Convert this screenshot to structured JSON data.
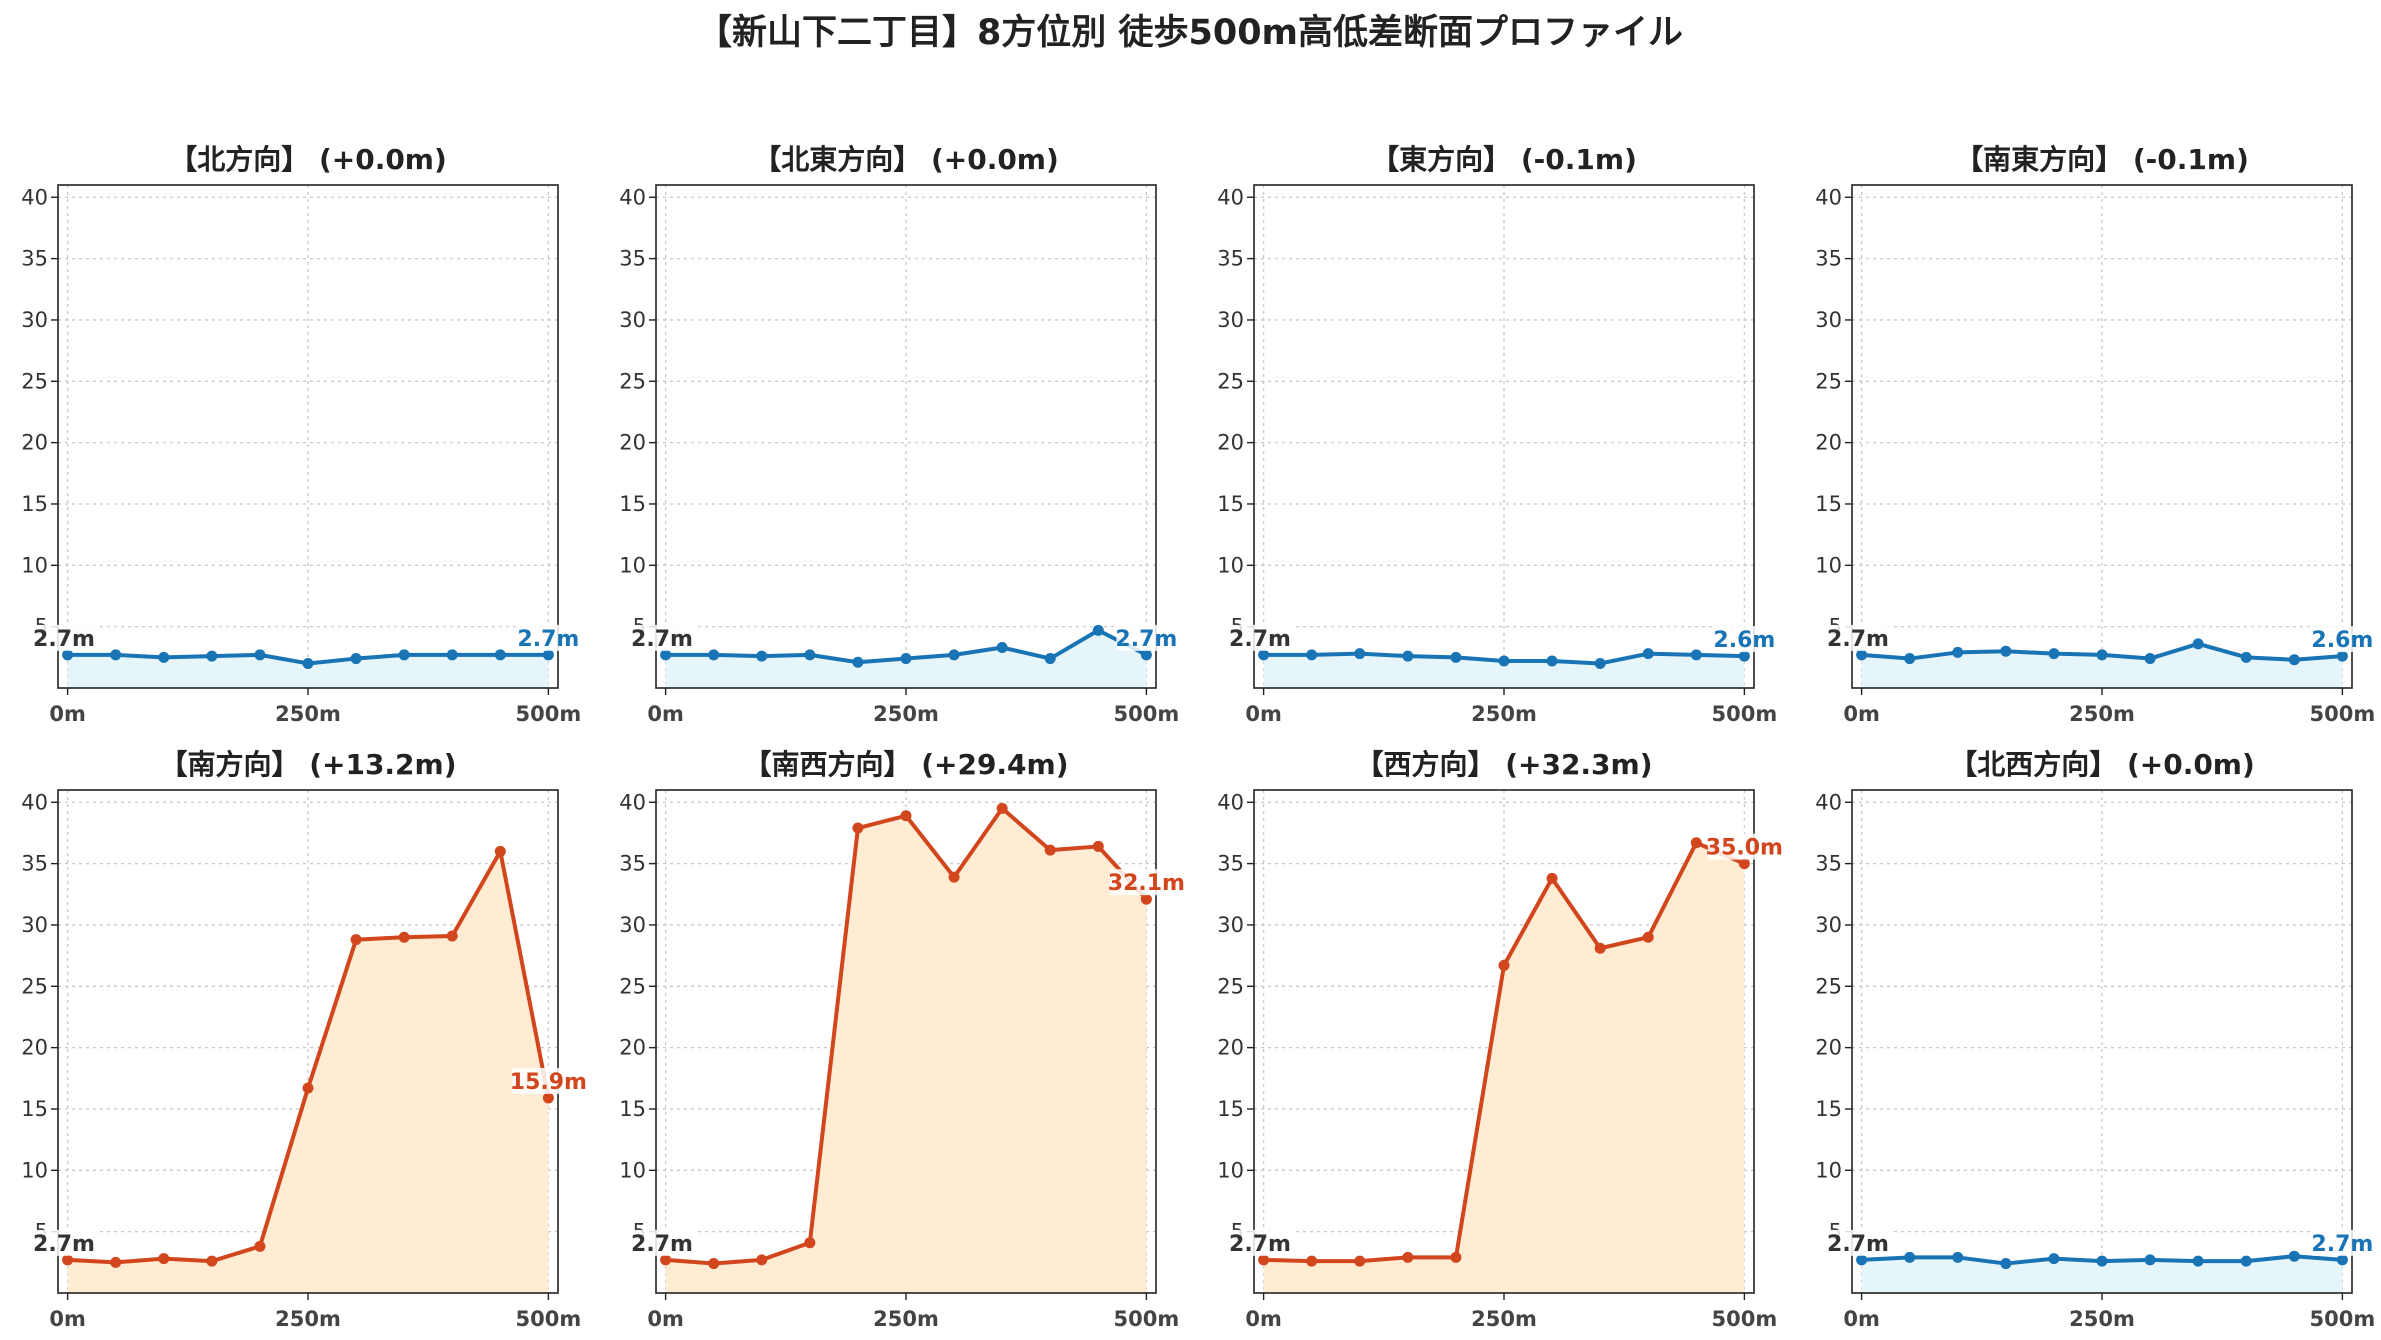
{
  "title": "【新山下二丁目】8方位別 徒歩500m高低差断面プロファイル",
  "colors": {
    "flat_line": "#1874b5",
    "flat_fill": "#e6f5fa",
    "hill_line": "#d2461e",
    "hill_fill": "#ffecd2",
    "start_label": "#333333"
  },
  "chart_data": [
    {
      "type": "line",
      "title": "【北方向】 (+0.0m)",
      "x": [
        0,
        50,
        100,
        150,
        200,
        250,
        300,
        350,
        400,
        450,
        500
      ],
      "values": [
        2.7,
        2.7,
        2.5,
        2.6,
        2.7,
        2.0,
        2.4,
        2.7,
        2.7,
        2.7,
        2.7
      ],
      "start_label": "2.7m",
      "end_label": "2.7m",
      "style": "flat",
      "xticks": [
        {
          "v": 0,
          "label": "0m"
        },
        {
          "v": 250,
          "label": "250m"
        },
        {
          "v": 500,
          "label": "500m"
        }
      ],
      "yticks": [
        5,
        10,
        15,
        20,
        25,
        30,
        35,
        40
      ],
      "ylim": [
        0,
        41
      ],
      "xlim": [
        -10,
        510
      ],
      "grid": true
    },
    {
      "type": "line",
      "title": "【北東方向】 (+0.0m)",
      "x": [
        0,
        50,
        100,
        150,
        200,
        250,
        300,
        350,
        400,
        450,
        500
      ],
      "values": [
        2.7,
        2.7,
        2.6,
        2.7,
        2.1,
        2.4,
        2.7,
        3.3,
        2.4,
        4.7,
        2.7
      ],
      "start_label": "2.7m",
      "end_label": "2.7m",
      "style": "flat",
      "xticks": [
        {
          "v": 0,
          "label": "0m"
        },
        {
          "v": 250,
          "label": "250m"
        },
        {
          "v": 500,
          "label": "500m"
        }
      ],
      "yticks": [
        5,
        10,
        15,
        20,
        25,
        30,
        35,
        40
      ],
      "ylim": [
        0,
        41
      ],
      "xlim": [
        -10,
        510
      ],
      "grid": true
    },
    {
      "type": "line",
      "title": "【東方向】 (-0.1m)",
      "x": [
        0,
        50,
        100,
        150,
        200,
        250,
        300,
        350,
        400,
        450,
        500
      ],
      "values": [
        2.7,
        2.7,
        2.8,
        2.6,
        2.5,
        2.2,
        2.2,
        2.0,
        2.8,
        2.7,
        2.6
      ],
      "start_label": "2.7m",
      "end_label": "2.6m",
      "style": "flat",
      "xticks": [
        {
          "v": 0,
          "label": "0m"
        },
        {
          "v": 250,
          "label": "250m"
        },
        {
          "v": 500,
          "label": "500m"
        }
      ],
      "yticks": [
        5,
        10,
        15,
        20,
        25,
        30,
        35,
        40
      ],
      "ylim": [
        0,
        41
      ],
      "xlim": [
        -10,
        510
      ],
      "grid": true
    },
    {
      "type": "line",
      "title": "【南東方向】 (-0.1m)",
      "x": [
        0,
        50,
        100,
        150,
        200,
        250,
        300,
        350,
        400,
        450,
        500
      ],
      "values": [
        2.7,
        2.4,
        2.9,
        3.0,
        2.8,
        2.7,
        2.4,
        3.6,
        2.5,
        2.3,
        2.6
      ],
      "start_label": "2.7m",
      "end_label": "2.6m",
      "style": "flat",
      "xticks": [
        {
          "v": 0,
          "label": "0m"
        },
        {
          "v": 250,
          "label": "250m"
        },
        {
          "v": 500,
          "label": "500m"
        }
      ],
      "yticks": [
        5,
        10,
        15,
        20,
        25,
        30,
        35,
        40
      ],
      "ylim": [
        0,
        41
      ],
      "xlim": [
        -10,
        510
      ],
      "grid": true
    },
    {
      "type": "line",
      "title": "【南方向】 (+13.2m)",
      "x": [
        0,
        50,
        100,
        150,
        200,
        250,
        300,
        350,
        400,
        450,
        500
      ],
      "values": [
        2.7,
        2.5,
        2.8,
        2.6,
        3.8,
        16.7,
        28.8,
        29.0,
        29.1,
        36.0,
        15.9
      ],
      "start_label": "2.7m",
      "end_label": "15.9m",
      "style": "hill",
      "xticks": [
        {
          "v": 0,
          "label": "0m"
        },
        {
          "v": 250,
          "label": "250m"
        },
        {
          "v": 500,
          "label": "500m"
        }
      ],
      "yticks": [
        5,
        10,
        15,
        20,
        25,
        30,
        35,
        40
      ],
      "ylim": [
        0,
        41
      ],
      "xlim": [
        -10,
        510
      ],
      "grid": true
    },
    {
      "type": "line",
      "title": "【南西方向】 (+29.4m)",
      "x": [
        0,
        50,
        100,
        150,
        200,
        250,
        300,
        350,
        400,
        450,
        500
      ],
      "values": [
        2.7,
        2.4,
        2.7,
        4.1,
        37.9,
        38.9,
        33.9,
        39.5,
        36.1,
        36.4,
        32.1
      ],
      "start_label": "2.7m",
      "end_label": "32.1m",
      "style": "hill",
      "xticks": [
        {
          "v": 0,
          "label": "0m"
        },
        {
          "v": 250,
          "label": "250m"
        },
        {
          "v": 500,
          "label": "500m"
        }
      ],
      "yticks": [
        5,
        10,
        15,
        20,
        25,
        30,
        35,
        40
      ],
      "ylim": [
        0,
        41
      ],
      "xlim": [
        -10,
        510
      ],
      "grid": true
    },
    {
      "type": "line",
      "title": "【西方向】 (+32.3m)",
      "x": [
        0,
        50,
        100,
        150,
        200,
        250,
        300,
        350,
        400,
        450,
        500
      ],
      "values": [
        2.7,
        2.6,
        2.6,
        2.9,
        2.9,
        26.7,
        33.8,
        28.1,
        29.0,
        36.7,
        35.0
      ],
      "start_label": "2.7m",
      "end_label": "35.0m",
      "style": "hill",
      "xticks": [
        {
          "v": 0,
          "label": "0m"
        },
        {
          "v": 250,
          "label": "250m"
        },
        {
          "v": 500,
          "label": "500m"
        }
      ],
      "yticks": [
        5,
        10,
        15,
        20,
        25,
        30,
        35,
        40
      ],
      "ylim": [
        0,
        41
      ],
      "xlim": [
        -10,
        510
      ],
      "grid": true
    },
    {
      "type": "line",
      "title": "【北西方向】 (+0.0m)",
      "x": [
        0,
        50,
        100,
        150,
        200,
        250,
        300,
        350,
        400,
        450,
        500
      ],
      "values": [
        2.7,
        2.9,
        2.9,
        2.4,
        2.8,
        2.6,
        2.7,
        2.6,
        2.6,
        3.0,
        2.7
      ],
      "start_label": "2.7m",
      "end_label": "2.7m",
      "style": "flat",
      "xticks": [
        {
          "v": 0,
          "label": "0m"
        },
        {
          "v": 250,
          "label": "250m"
        },
        {
          "v": 500,
          "label": "500m"
        }
      ],
      "yticks": [
        5,
        10,
        15,
        20,
        25,
        30,
        35,
        40
      ],
      "ylim": [
        0,
        41
      ],
      "xlim": [
        -10,
        510
      ],
      "grid": true
    }
  ]
}
